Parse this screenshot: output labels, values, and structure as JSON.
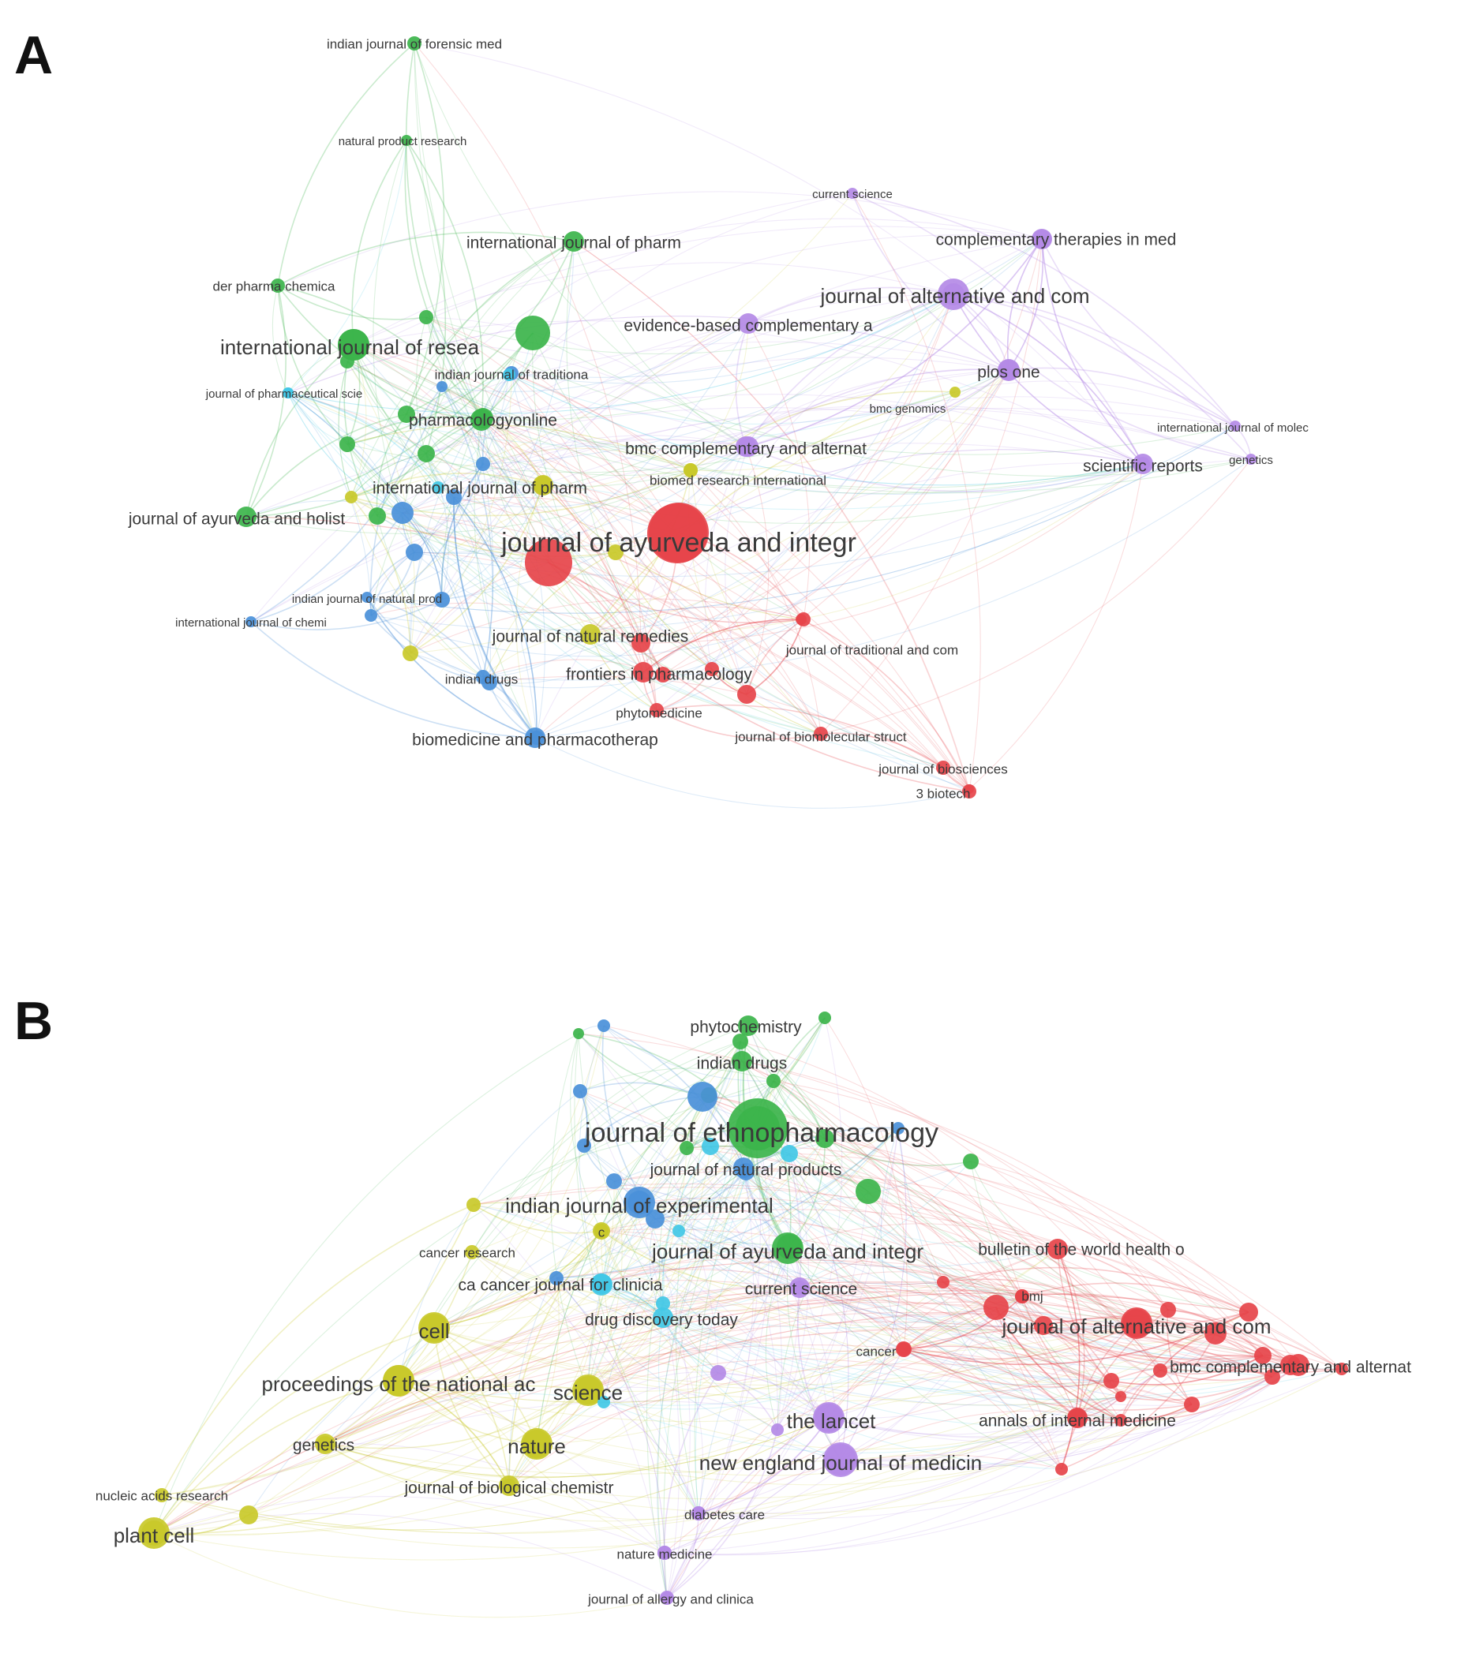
{
  "figure": {
    "panels": [
      {
        "letter": "A",
        "colors": {
          "red": "#e6444a",
          "green": "#3cb44b",
          "blue": "#4a90d9",
          "yellow": "#c9c92a",
          "purple": "#b48ae6",
          "cyan": "#42c8e6"
        },
        "labels": [
          {
            "text": "indian journal of forensic med",
            "cluster": "green",
            "node": "g-forensic",
            "size": "s"
          },
          {
            "text": "natural product research",
            "cluster": "green",
            "node": "g-natprod",
            "size": "xs"
          },
          {
            "text": "current science",
            "cluster": "purple",
            "node": "p-cursci",
            "size": "xs"
          },
          {
            "text": "international journal of pharm",
            "cluster": "green",
            "node": "g-ijpharm",
            "size": "m"
          },
          {
            "text": "complementary therapies in med",
            "cluster": "purple",
            "node": "p-comther",
            "size": "m"
          },
          {
            "text": "der pharma chemica",
            "cluster": "green",
            "node": "g-derpharma",
            "size": "s"
          },
          {
            "text": "journal of alternative and com",
            "cluster": "purple",
            "node": "p-jaltcom",
            "size": "l"
          },
          {
            "text": "international journal of resea",
            "cluster": "green",
            "node": "g-ijresea",
            "size": "l"
          },
          {
            "text": "evidence-based complementary a",
            "cluster": "purple",
            "node": "p-ebcam",
            "size": "m"
          },
          {
            "text": "indian journal of traditiona",
            "cluster": "blue",
            "node": "b-ijtrad",
            "size": "s"
          },
          {
            "text": "journal of pharmaceutical scie",
            "cluster": "cyan",
            "node": "c-jpharmsci",
            "size": "xs"
          },
          {
            "text": "plos one",
            "cluster": "purple",
            "node": "p-plosone",
            "size": "m"
          },
          {
            "text": "bmc genomics",
            "cluster": "yellow",
            "node": "y-bmcgen",
            "size": "xs"
          },
          {
            "text": "pharmacologyonline",
            "cluster": "green",
            "node": "g-pharmonline",
            "size": "m"
          },
          {
            "text": "international journal of molec",
            "cluster": "purple",
            "node": "p-ijmolec",
            "size": "xs"
          },
          {
            "text": "bmc complementary and alternat",
            "cluster": "purple",
            "node": "p-bmccomp",
            "size": "m"
          },
          {
            "text": "scientific reports",
            "cluster": "purple",
            "node": "p-scirep",
            "size": "m"
          },
          {
            "text": "genetics",
            "cluster": "purple",
            "node": "p-genetics",
            "size": "xs"
          },
          {
            "text": "international journal of pharm",
            "cluster": "yellow",
            "node": "y-ijpharm",
            "size": "m"
          },
          {
            "text": "biomed research international",
            "cluster": "yellow",
            "node": "y-biomed",
            "size": "s"
          },
          {
            "text": "journal of ayurveda and holist",
            "cluster": "green",
            "node": "g-jayurholist",
            "size": "m"
          },
          {
            "text": "journal of ayurveda and integr",
            "cluster": "red",
            "node": "r-jayurint",
            "size": "xl"
          },
          {
            "text": "indian journal of natural prod",
            "cluster": "blue",
            "node": "b-ijnatprod",
            "size": "xs"
          },
          {
            "text": "international journal of chemi",
            "cluster": "blue",
            "node": "b-ijchemi",
            "size": "xs"
          },
          {
            "text": "journal of natural remedies",
            "cluster": "yellow",
            "node": "y-jnatrem",
            "size": "m"
          },
          {
            "text": "journal of traditional and com",
            "cluster": "red",
            "node": "r-jtradcom",
            "size": "s"
          },
          {
            "text": "frontiers in pharmacology",
            "cluster": "red",
            "node": "r-frontpharm",
            "size": "m"
          },
          {
            "text": "indian drugs",
            "cluster": "blue",
            "node": "b-indiandrugs",
            "size": "s"
          },
          {
            "text": "phytomedicine",
            "cluster": "red",
            "node": "r-phytomed",
            "size": "s"
          },
          {
            "text": "biomedicine and pharmacotherap",
            "cluster": "blue",
            "node": "b-biomedpharm",
            "size": "m"
          },
          {
            "text": "journal of biomolecular struct",
            "cluster": "red",
            "node": "r-jbiomol",
            "size": "s"
          },
          {
            "text": "journal of biosciences",
            "cluster": "red",
            "node": "r-jbiosci",
            "size": "s"
          },
          {
            "text": "3 biotech",
            "cluster": "red",
            "node": "r-3biotech",
            "size": "s"
          }
        ]
      },
      {
        "letter": "B",
        "labels": [
          {
            "text": "phytochemistry",
            "cluster": "green",
            "node": "g-phytochem",
            "size": "m"
          },
          {
            "text": "indian drugs",
            "cluster": "green",
            "node": "g-indiandrugs",
            "size": "m"
          },
          {
            "text": "journal of ethnopharmacology",
            "cluster": "green",
            "node": "g-jethno",
            "size": "xl"
          },
          {
            "text": "journal of natural products",
            "cluster": "blue",
            "node": "b-jnatprod",
            "size": "m"
          },
          {
            "text": "indian journal of experimental",
            "cluster": "blue",
            "node": "b-ijexp",
            "size": "l"
          },
          {
            "text": "journal of ayurveda and integr",
            "cluster": "green",
            "node": "g-jayurint",
            "size": "l"
          },
          {
            "text": "bulletin of the world health o",
            "cluster": "red",
            "node": "r-bullwho",
            "size": "m"
          },
          {
            "text": "cancer research",
            "cluster": "yellow",
            "node": "y-cancerres",
            "size": "s"
          },
          {
            "text": "c",
            "cluster": "yellow",
            "node": "y-c",
            "size": "s"
          },
          {
            "text": "ca cancer journal for clinicia",
            "cluster": "cyan",
            "node": "c-cacancer",
            "size": "m"
          },
          {
            "text": "current science",
            "cluster": "purple",
            "node": "p-cursci",
            "size": "m"
          },
          {
            "text": "bmj",
            "cluster": "red",
            "node": "r-bmj",
            "size": "s"
          },
          {
            "text": "drug discovery today",
            "cluster": "cyan",
            "node": "c-drugdisc",
            "size": "m"
          },
          {
            "text": "journal of alternative and com",
            "cluster": "red",
            "node": "r-jaltcom",
            "size": "l"
          },
          {
            "text": "cell",
            "cluster": "yellow",
            "node": "y-cell",
            "size": "l"
          },
          {
            "text": "cancer",
            "cluster": "red",
            "node": "r-cancer",
            "size": "s"
          },
          {
            "text": "bmc complementary and alternat",
            "cluster": "red",
            "node": "r-bmccomp",
            "size": "m"
          },
          {
            "text": "proceedings of the national ac",
            "cluster": "yellow",
            "node": "y-pnas",
            "size": "l"
          },
          {
            "text": "science",
            "cluster": "yellow",
            "node": "y-science",
            "size": "l"
          },
          {
            "text": "the lancet",
            "cluster": "purple",
            "node": "p-lancet",
            "size": "l"
          },
          {
            "text": "annals of internal medicine",
            "cluster": "red",
            "node": "r-annals",
            "size": "m"
          },
          {
            "text": "genetics",
            "cluster": "yellow",
            "node": "y-genetics",
            "size": "m"
          },
          {
            "text": "nature",
            "cluster": "yellow",
            "node": "y-nature",
            "size": "l"
          },
          {
            "text": "new england journal of medicin",
            "cluster": "purple",
            "node": "p-nejm",
            "size": "l"
          },
          {
            "text": "nucleic acids research",
            "cluster": "yellow",
            "node": "y-nucleic",
            "size": "s"
          },
          {
            "text": "journal of biological chemistr",
            "cluster": "yellow",
            "node": "y-jbiochem",
            "size": "m"
          },
          {
            "text": "plant cell",
            "cluster": "yellow",
            "node": "y-plantcell",
            "size": "l"
          },
          {
            "text": "diabetes care",
            "cluster": "purple",
            "node": "p-diabetes",
            "size": "s"
          },
          {
            "text": "nature medicine",
            "cluster": "purple",
            "node": "p-natmed",
            "size": "s"
          },
          {
            "text": "journal of allergy and clinica",
            "cluster": "purple",
            "node": "p-jallergy",
            "size": "s"
          }
        ]
      }
    ]
  }
}
